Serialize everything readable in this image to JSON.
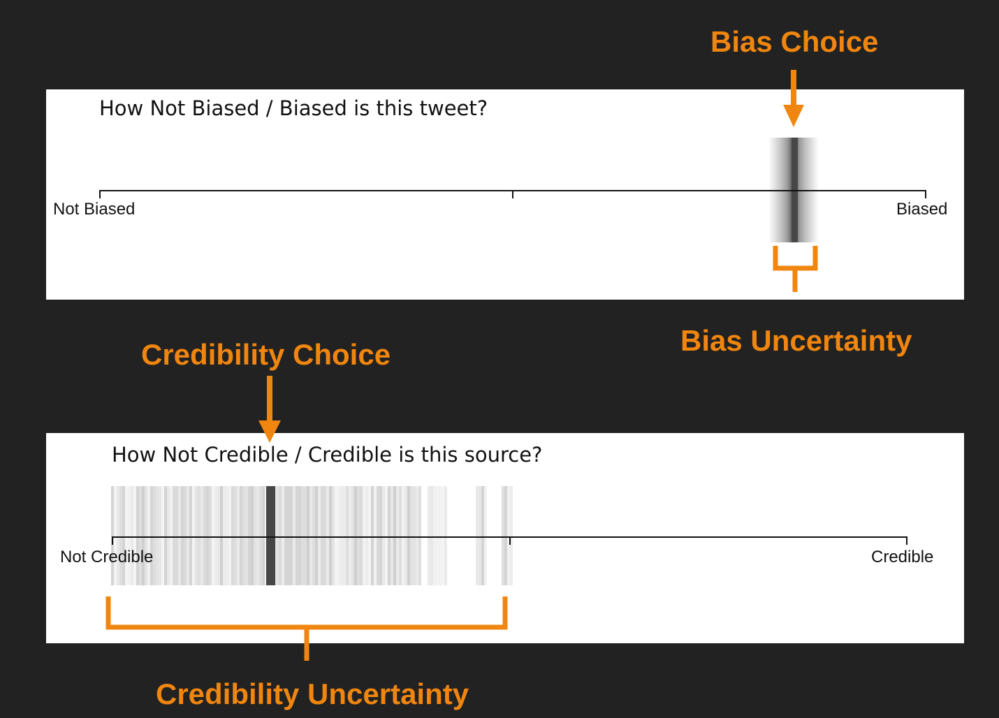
{
  "colors": {
    "background": "#222222",
    "panel": "#ffffff",
    "accent": "#F0860F",
    "scale_line": "#111111",
    "choice_mark": "#474747"
  },
  "bias_panel": {
    "question": "How Not Biased / Biased is this tweet?",
    "left_label": "Not Biased",
    "right_label": "Biased",
    "choice_value": 0.84,
    "uncertainty_range": [
      0.81,
      0.87
    ]
  },
  "credibility_panel": {
    "question": "How Not Credible / Credible is this source?",
    "left_label": "Not Credible",
    "right_label": "Credible",
    "choice_value": 0.2,
    "uncertainty_range": [
      0.0,
      0.5
    ]
  },
  "annotations": {
    "bias_choice": "Bias Choice",
    "bias_uncertainty": "Bias Uncertainty",
    "credibility_choice": "Credibility Choice",
    "credibility_uncertainty": "Credibility Uncertainty"
  }
}
